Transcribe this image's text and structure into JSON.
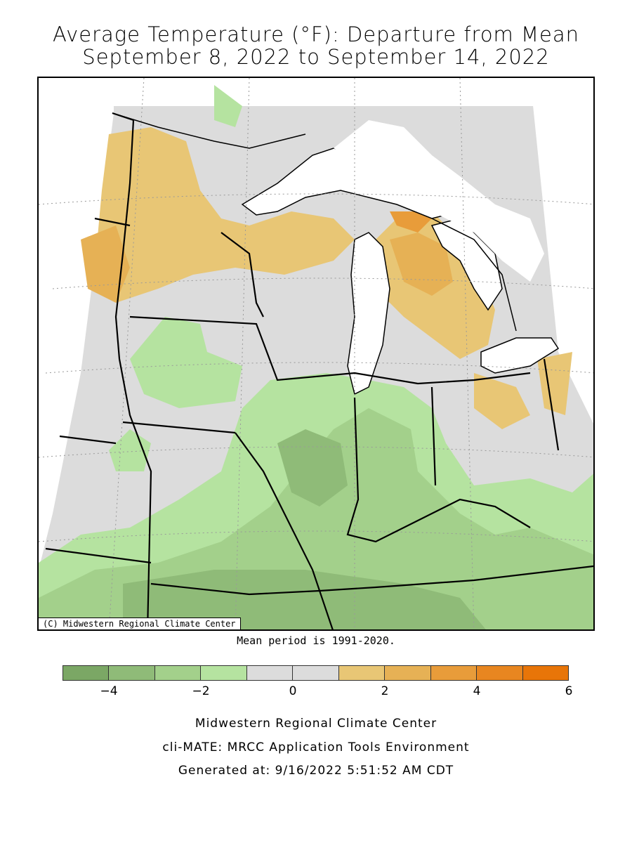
{
  "title_line1": "Average Temperature (°F): Departure from Mean",
  "title_line2": "September 8, 2022 to September 14, 2022",
  "map_credit": "(C) Midwestern Regional Climate Center",
  "mean_period_note": "Mean period is 1991-2020.",
  "legend": {
    "colors": [
      "#7ba765",
      "#8fbb78",
      "#a3d08b",
      "#b5e3a0",
      "#dcdcdc",
      "#dcdcdc",
      "#e8c675",
      "#e6b155",
      "#e89c3a",
      "#e88620",
      "#e87508"
    ],
    "tick_labels": [
      "−4",
      "−2",
      "0",
      "2",
      "4",
      "6"
    ]
  },
  "footer": {
    "line1": "Midwestern Regional Climate Center",
    "line2": "cli-MATE: MRCC Application Tools Environment",
    "line3": "Generated at: 9/16/2022 5:51:52 AM CDT"
  }
}
